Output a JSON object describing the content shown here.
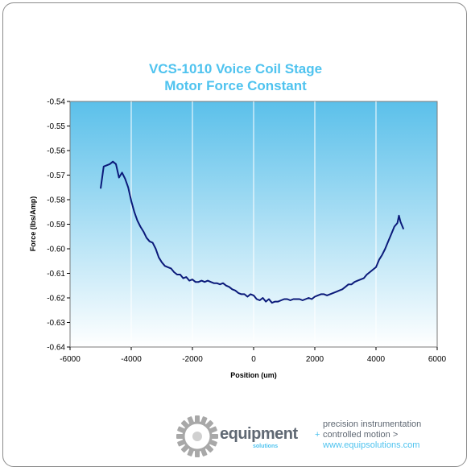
{
  "chart_data": {
    "type": "line",
    "title": [
      "VCS-1010 Voice Coil Stage",
      "Motor Force Constant"
    ],
    "xlabel": "Position (um)",
    "ylabel": "Force (lbs/Amp)",
    "xlim": [
      -6000,
      6000
    ],
    "ylim": [
      -0.64,
      -0.54
    ],
    "xticks": [
      -6000,
      -4000,
      -2000,
      0,
      2000,
      4000,
      6000
    ],
    "yticks": [
      -0.54,
      -0.55,
      -0.56,
      -0.57,
      -0.58,
      -0.59,
      -0.6,
      -0.61,
      -0.62,
      -0.63,
      -0.64
    ],
    "xtick_labels": [
      "-6000",
      "-4000",
      "-2000",
      "0",
      "2000",
      "4000",
      "6000"
    ],
    "ytick_labels": [
      "-0.54",
      "-0.55",
      "-0.56",
      "-0.57",
      "-0.58",
      "-0.59",
      "-0.60",
      "-0.61",
      "-0.62",
      "-0.63",
      "-0.64"
    ],
    "grid": "vertical",
    "legend": "none",
    "series": [
      {
        "color": "#0b1a7a",
        "x": [
          -5000,
          -4900,
          -4800,
          -4700,
          -4600,
          -4500,
          -4400,
          -4300,
          -4200,
          -4100,
          -4000,
          -3900,
          -3800,
          -3700,
          -3600,
          -3500,
          -3400,
          -3300,
          -3200,
          -3100,
          -3000,
          -2900,
          -2800,
          -2700,
          -2600,
          -2500,
          -2400,
          -2300,
          -2200,
          -2100,
          -2000,
          -1900,
          -1800,
          -1700,
          -1600,
          -1500,
          -1400,
          -1300,
          -1200,
          -1100,
          -1000,
          -900,
          -800,
          -700,
          -600,
          -500,
          -400,
          -300,
          -200,
          -100,
          0,
          100,
          200,
          300,
          400,
          500,
          600,
          700,
          800,
          900,
          1000,
          1100,
          1200,
          1300,
          1400,
          1500,
          1600,
          1700,
          1800,
          1900,
          2000,
          2100,
          2200,
          2300,
          2400,
          2500,
          2600,
          2700,
          2800,
          2900,
          3000,
          3100,
          3200,
          3300,
          3400,
          3500,
          3600,
          3700,
          3800,
          3900,
          4000,
          4100,
          4200,
          4300,
          4400,
          4500,
          4600,
          4700,
          4750,
          4800,
          4900
        ],
        "y": [
          -0.5755,
          -0.5665,
          -0.566,
          -0.5655,
          -0.5645,
          -0.5655,
          -0.571,
          -0.569,
          -0.5715,
          -0.575,
          -0.5805,
          -0.585,
          -0.5885,
          -0.591,
          -0.593,
          -0.5955,
          -0.597,
          -0.5975,
          -0.6,
          -0.6035,
          -0.6055,
          -0.607,
          -0.6075,
          -0.608,
          -0.6095,
          -0.6105,
          -0.6105,
          -0.612,
          -0.6115,
          -0.613,
          -0.6125,
          -0.6135,
          -0.6135,
          -0.613,
          -0.6135,
          -0.613,
          -0.6135,
          -0.614,
          -0.614,
          -0.6145,
          -0.614,
          -0.615,
          -0.6155,
          -0.6165,
          -0.617,
          -0.618,
          -0.6185,
          -0.6185,
          -0.6195,
          -0.6185,
          -0.619,
          -0.6205,
          -0.621,
          -0.62,
          -0.6215,
          -0.6205,
          -0.622,
          -0.6215,
          -0.6215,
          -0.621,
          -0.6205,
          -0.6205,
          -0.621,
          -0.6205,
          -0.6205,
          -0.6205,
          -0.621,
          -0.6205,
          -0.62,
          -0.6205,
          -0.6195,
          -0.619,
          -0.6185,
          -0.6185,
          -0.619,
          -0.6185,
          -0.618,
          -0.6175,
          -0.617,
          -0.6165,
          -0.6155,
          -0.6145,
          -0.6145,
          -0.6135,
          -0.613,
          -0.6125,
          -0.612,
          -0.6105,
          -0.6095,
          -0.6085,
          -0.6075,
          -0.6045,
          -0.6025,
          -0.6,
          -0.597,
          -0.594,
          -0.591,
          -0.5895,
          -0.5865,
          -0.589,
          -0.592
        ]
      }
    ]
  },
  "logo": {
    "brand": "equipment",
    "sub": "solutions",
    "tagline": [
      "precision instrumentation",
      "controlled motion >",
      "www.equipsolutions.com"
    ],
    "plus": "+"
  },
  "colors": {
    "title": "#4fc3ef",
    "line": "#0b1a7a",
    "plot_top": "#5bc0ea",
    "plot_bottom": "#ffffff",
    "gear": "#a8a8a8"
  }
}
